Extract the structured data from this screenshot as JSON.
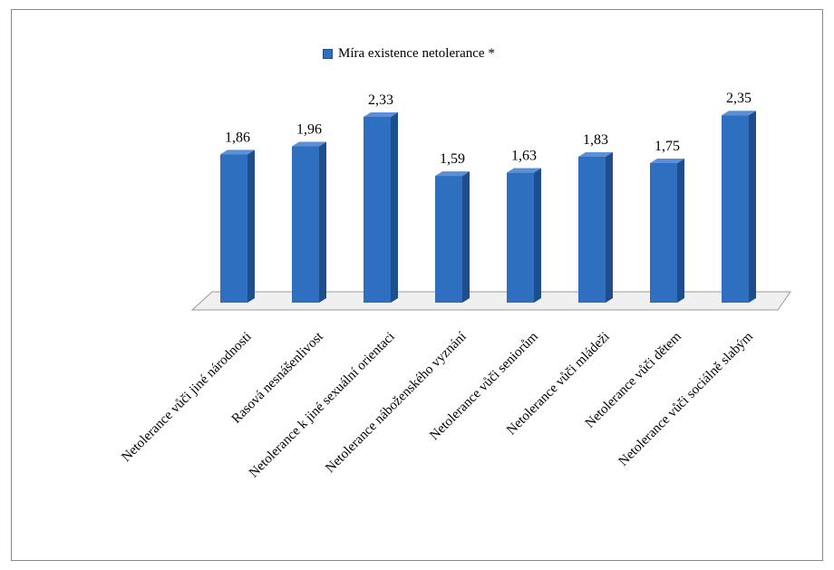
{
  "chart_data": {
    "type": "bar",
    "legend": "top-center",
    "series": [
      {
        "name": "Míra existence netolerance *",
        "values": [
          1.86,
          1.96,
          2.33,
          1.59,
          1.63,
          1.83,
          1.75,
          2.35
        ]
      }
    ],
    "categories": [
      "Netolerance vůči jiné národnosti",
      "Rasová nesnášenlivost",
      "Netolerance k jiné sexuální orientaci",
      "Netolerance náboženského vyznání",
      "Netolerance vůči seniorům",
      "Netolerance vůči mládeži",
      "Netolerance vůči dětem",
      "Netolerance vůči sociálně slabým"
    ],
    "value_labels": [
      "1,86",
      "1,96",
      "2,33",
      "1,59",
      "1,63",
      "1,83",
      "1,75",
      "2,35"
    ],
    "colors": {
      "bar": "#2f6fbf",
      "bar_side": "#1f4e8c",
      "bar_top": "#5b8fd6",
      "floor": "#f0f0f0"
    }
  }
}
